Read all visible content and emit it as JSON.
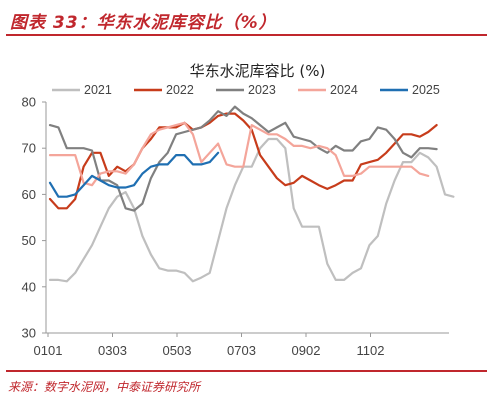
{
  "figure": {
    "title": "图表 33：华东水泥库容比（%）",
    "source": "来源：数字水泥网，中泰证券研究所"
  },
  "chart_data": {
    "type": "line",
    "title": "华东水泥库容比 (%)",
    "xlabel": "",
    "ylabel": "",
    "ylim": [
      30,
      80
    ],
    "yticks": [
      30,
      40,
      50,
      60,
      70,
      80
    ],
    "x_tick_labels": [
      "0101",
      "0303",
      "0503",
      "0703",
      "0902",
      "1102"
    ],
    "grid": false,
    "legend": "top",
    "series": [
      {
        "name": "2021",
        "color": "#bfbfbf",
        "values": [
          41.5,
          41.5,
          41.2,
          43,
          46,
          49,
          53,
          57,
          59.5,
          60.5,
          57,
          51,
          47,
          44,
          43.5,
          43.5,
          43,
          41.2,
          42,
          43,
          50,
          57,
          62,
          66,
          66,
          70,
          72,
          72,
          70,
          57,
          53,
          53,
          53,
          45,
          41.5,
          41.5,
          43,
          44,
          49,
          51,
          58,
          63,
          67,
          67,
          69,
          68,
          66,
          60,
          59.5
        ]
      },
      {
        "name": "2022",
        "color": "#c73c1b",
        "values": [
          59,
          57,
          57,
          59,
          66,
          69,
          69,
          64,
          66,
          65,
          66.5,
          70,
          72,
          74.5,
          74.5,
          74.5,
          75.5,
          74,
          74.5,
          75.5,
          77,
          77.5,
          77.5,
          76,
          74,
          68.5,
          66,
          63.5,
          62,
          62.5,
          64,
          63,
          62,
          61.2,
          62,
          63,
          63,
          66.5,
          67,
          67.5,
          69,
          71,
          73,
          73,
          72.5,
          73.5,
          75
        ]
      },
      {
        "name": "2023",
        "color": "#808080",
        "values": [
          75,
          74.5,
          70,
          70,
          70,
          69.5,
          63,
          63,
          62,
          57,
          56.5,
          58,
          63.5,
          67,
          69,
          73,
          73.5,
          74,
          74.5,
          76,
          78,
          77,
          79,
          77.5,
          76.5,
          75,
          73.5,
          74.5,
          75.5,
          72.5,
          72,
          71.5,
          70,
          69,
          70.5,
          69.5,
          69.5,
          71.5,
          72,
          74.5,
          74,
          72,
          69,
          68,
          70,
          70,
          69.8
        ]
      },
      {
        "name": "2024",
        "color": "#f4a59a",
        "values": [
          68.5,
          68.5,
          68.5,
          68.5,
          62.5,
          62,
          64.5,
          65,
          65,
          64.5,
          66.5,
          70,
          73,
          74,
          74.5,
          75,
          75.5,
          73,
          67,
          69,
          71,
          66.5,
          66,
          66,
          75,
          74,
          73,
          73,
          72,
          70.5,
          70.5,
          70,
          70.5,
          70,
          68.5,
          64,
          64,
          64.5,
          66,
          66,
          66,
          66,
          66,
          66,
          64.5,
          64
        ]
      },
      {
        "name": "2025",
        "color": "#1f6fb2",
        "values": [
          62.5,
          59.5,
          59.5,
          60,
          62,
          64,
          63,
          62,
          61.5,
          61.5,
          62,
          64.5,
          66,
          66.5,
          66.5,
          68.5,
          68.5,
          66.5,
          66.5,
          67,
          69
        ]
      }
    ]
  }
}
